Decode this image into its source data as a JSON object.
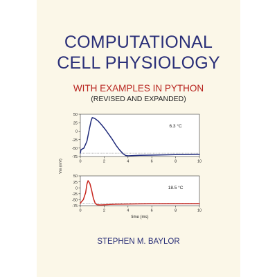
{
  "cover": {
    "title_line1": "COMPUTATIONAL",
    "title_line2": "CELL PHYSIOLOGY",
    "subtitle": "WITH EXAMPLES IN PYTHON",
    "edition": "(REVISED AND EXPANDED)",
    "author": "STEPHEN M. BAYLOR"
  },
  "colors": {
    "title": "#2a2f78",
    "subtitle": "#b8231e",
    "background": "#fbf7e8",
    "trace_top": "#1f2a7a",
    "trace_bottom": "#c8261e"
  },
  "chart_data": [
    {
      "type": "line",
      "annotation": "6.3 °C",
      "ylabel": "Vm (mV)",
      "xlim": [
        0,
        10
      ],
      "ylim": [
        -75,
        50
      ],
      "x_ticks": [
        "0",
        "2",
        "4",
        "6",
        "8",
        "10"
      ],
      "y_ticks": [
        "50",
        "25",
        "0",
        "-25",
        "-50",
        "-75"
      ],
      "resting_line": -65,
      "series": [
        {
          "x": [
            0.0,
            0.05,
            0.3,
            0.55,
            0.75,
            0.9,
            1.0,
            1.2,
            1.5,
            1.8,
            2.1,
            2.4,
            2.7,
            3.0,
            3.3,
            3.6,
            3.8,
            4.0,
            4.3,
            5.0,
            6.0,
            7.0,
            8.0,
            9.0,
            10.0
          ],
          "y": [
            -65,
            -55,
            -50,
            -30,
            5,
            30,
            40,
            38,
            30,
            18,
            5,
            -10,
            -25,
            -42,
            -56,
            -67,
            -72,
            -73,
            -72.5,
            -71.5,
            -71,
            -70,
            -69.5,
            -69,
            -68.5
          ]
        }
      ]
    },
    {
      "type": "line",
      "annotation": "18.5 °C",
      "xlabel": "time (ms)",
      "xlim": [
        0,
        10
      ],
      "ylim": [
        -75,
        50
      ],
      "x_ticks": [
        "0",
        "2",
        "4",
        "6",
        "8",
        "10"
      ],
      "y_ticks": [
        "50",
        "25",
        "0",
        "-25",
        "-50",
        "-75"
      ],
      "resting_line": -65,
      "series": [
        {
          "x": [
            0.0,
            0.1,
            0.25,
            0.45,
            0.55,
            0.65,
            0.8,
            0.95,
            1.1,
            1.25,
            1.4,
            1.7,
            2.0,
            2.5,
            3.0,
            4.0,
            5.0,
            6.0,
            7.0,
            8.0,
            9.0,
            10.0
          ],
          "y": [
            -65,
            -58,
            -50,
            -20,
            15,
            30,
            18,
            -10,
            -45,
            -65,
            -71,
            -72,
            -71.5,
            -70,
            -69,
            -68,
            -67.5,
            -67,
            -67,
            -66.5,
            -66.5,
            -66.5
          ]
        }
      ]
    }
  ]
}
